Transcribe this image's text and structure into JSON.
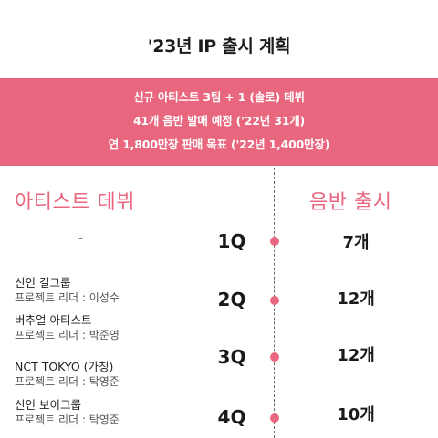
{
  "title": "'23년 IP 출시 계획",
  "banner": {
    "line1": "신규 아티스트 3팀 + 1 (솔로) 데뷔",
    "line2": "41개 음반 발매 예정 ('22년 31개)",
    "line3": "연 1,800만장 판매 목표 ('22년 1,400만장)"
  },
  "columns": {
    "left": "아티스트 데뷔",
    "right": "음반 출시"
  },
  "q1": {
    "quarter": "1Q",
    "albums": "7개",
    "artist_placeholder": "-"
  },
  "q2": {
    "quarter": "2Q",
    "albums": "12개"
  },
  "q3": {
    "quarter": "3Q",
    "albums": "12개"
  },
  "q4": {
    "quarter": "4Q",
    "albums": "10개"
  },
  "artists": [
    {
      "name": "신인 걸그룹",
      "leader": "프로젝트 리더 : 이성수"
    },
    {
      "name": "버추얼 아티스트",
      "leader": "프로젝트 리더 : 박준영"
    },
    {
      "name": "NCT TOKYO (가칭)",
      "leader": "프로젝트 리더 : 탁영준"
    },
    {
      "name": "신인 보이그룹",
      "leader": "프로젝트 리더 : 탁영준"
    }
  ],
  "colors": {
    "accent": "#e8677e",
    "text": "#1e1e1e",
    "subtext": "#555555"
  }
}
